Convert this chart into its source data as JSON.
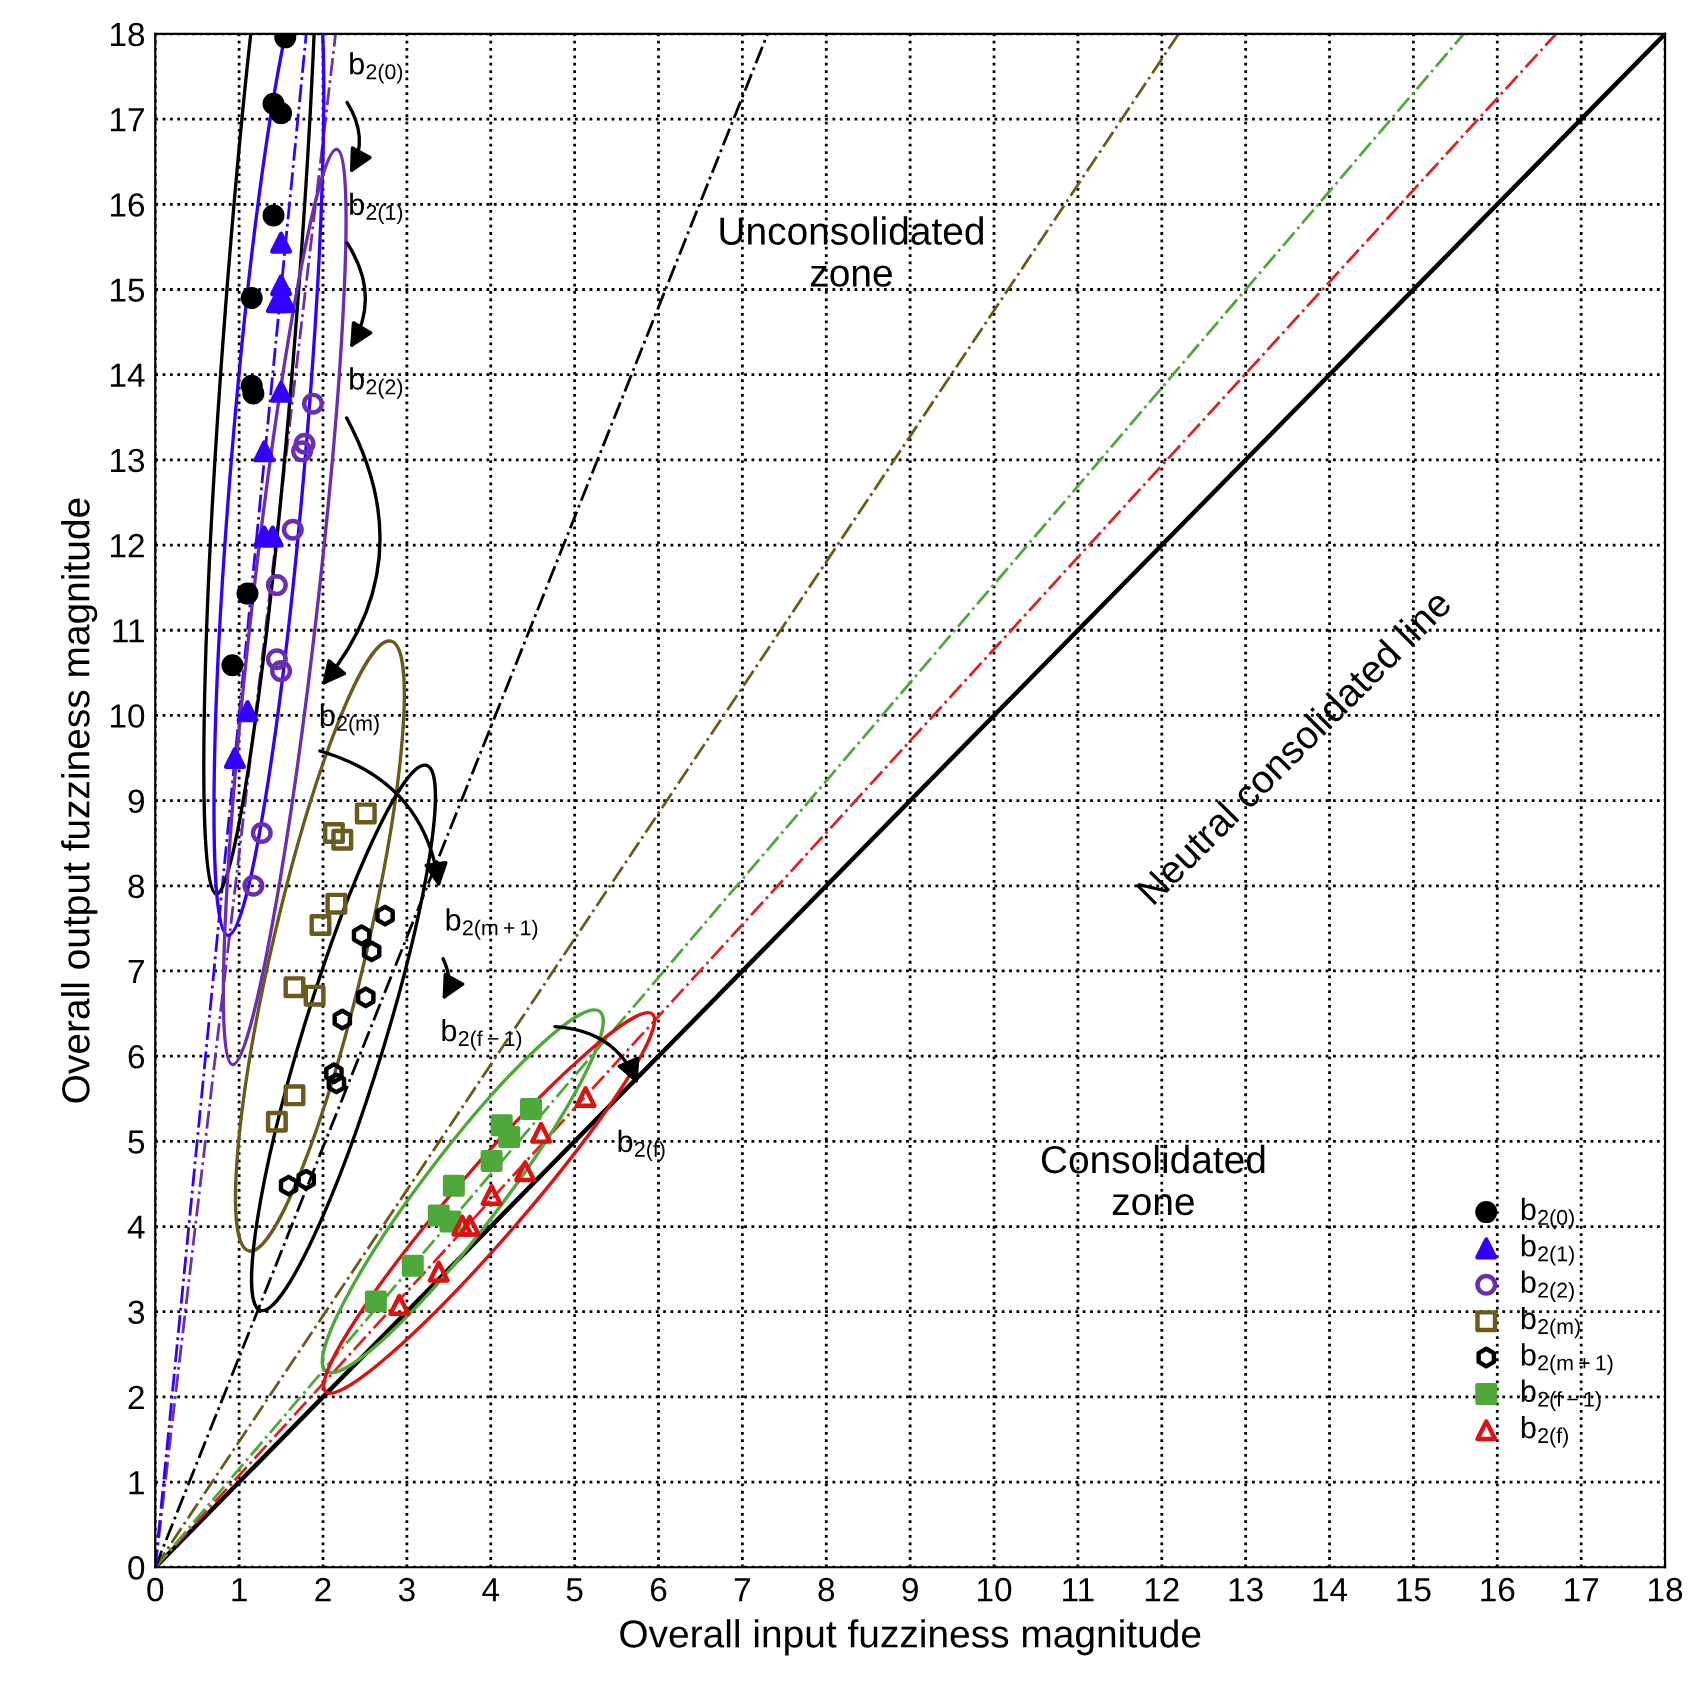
{
  "chart_data": {
    "type": "scatter",
    "xlabel": "Overall input fuzziness magnitude",
    "ylabel": "Overall output fuzziness magnitude",
    "xlim": [
      0,
      18
    ],
    "ylim": [
      0,
      18
    ],
    "xticks": [
      0,
      1,
      2,
      3,
      4,
      5,
      6,
      7,
      8,
      9,
      10,
      11,
      12,
      13,
      14,
      15,
      16,
      17,
      18
    ],
    "yticks": [
      0,
      1,
      2,
      3,
      4,
      5,
      6,
      7,
      8,
      9,
      10,
      11,
      12,
      13,
      14,
      15,
      16,
      17,
      18
    ],
    "grid": true,
    "legend": "bottom right",
    "series": [
      {
        "name": "b$_{2(0)}$",
        "color": "#000000",
        "marker": "circle",
        "x": [
          1.55,
          1.41,
          1.5,
          1.41,
          1.15,
          1.15,
          1.17,
          1.1,
          0.92
        ],
        "values": [
          17.96,
          17.18,
          17.07,
          15.87,
          14.9,
          13.87,
          13.78,
          11.43,
          10.59
        ]
      },
      {
        "name": "b$_{2(1)}$",
        "color": "#3300ff",
        "marker": "triangle",
        "x": [
          1.5,
          1.5,
          1.45,
          1.55,
          1.5,
          1.3,
          1.3,
          1.4,
          1.1,
          0.95
        ],
        "values": [
          15.55,
          15.05,
          14.85,
          14.85,
          13.8,
          13.1,
          12.1,
          12.1,
          10.05,
          9.5
        ]
      },
      {
        "name": "b$_{2(2)}$",
        "color": "#6a2fb0",
        "marker": "circle_open",
        "x": [
          1.88,
          1.78,
          1.75,
          1.64,
          1.45,
          1.45,
          1.5,
          1.27,
          1.17
        ],
        "values": [
          13.66,
          13.19,
          13.1,
          12.18,
          11.53,
          10.66,
          10.52,
          8.62,
          8.0
        ]
      },
      {
        "name": "b$_{2(m)}$",
        "color": "#6b5a1e",
        "marker": "square_open",
        "x": [
          2.51,
          2.13,
          2.23,
          2.16,
          1.97,
          1.66,
          1.9,
          1.66,
          1.45
        ],
        "values": [
          8.85,
          8.62,
          8.54,
          7.79,
          7.54,
          6.81,
          6.71,
          5.54,
          5.23
        ]
      },
      {
        "name": "b$_{2(m+1)}$",
        "color": "#000000",
        "marker": "circle_open",
        "x": [
          2.74,
          2.46,
          2.58,
          2.51,
          2.23,
          2.13,
          2.16,
          1.8,
          1.59
        ],
        "values": [
          7.65,
          7.42,
          7.23,
          6.69,
          6.43,
          5.8,
          5.68,
          4.55,
          4.48
        ]
      },
      {
        "name": "b$_{2(f−1)}$",
        "color": "#4ea83a",
        "marker": "square",
        "x": [
          4.48,
          4.13,
          4.22,
          4.01,
          3.56,
          3.38,
          3.52,
          3.07,
          2.63
        ],
        "values": [
          5.38,
          5.19,
          5.05,
          4.77,
          4.48,
          4.13,
          4.06,
          3.54,
          3.12
        ]
      },
      {
        "name": "b$_{2(f)}$",
        "color": "#dd1111",
        "marker": "triangle_open",
        "x": [
          5.13,
          4.6,
          4.41,
          4.01,
          3.75,
          3.66,
          3.38,
          2.91
        ],
        "values": [
          5.52,
          5.1,
          4.65,
          4.37,
          4.01,
          4.01,
          3.47,
          3.08
        ]
      },
      {
        "type": "line",
        "color": "#000000",
        "line_style": "solid",
        "x": [
          0,
          18
        ],
        "values": [
          0,
          18
        ]
      },
      {
        "type": "line",
        "color": "#dd2222",
        "line_style": "dashdot",
        "x": [
          0,
          16.7
        ],
        "values": [
          0,
          18
        ]
      },
      {
        "type": "line",
        "color": "#4ea83a",
        "line_style": "dashdot",
        "x": [
          0,
          15.6
        ],
        "values": [
          0,
          18
        ]
      },
      {
        "type": "line",
        "color": "#6b5a1e",
        "line_style": "dashdot",
        "x": [
          0,
          12.2
        ],
        "values": [
          0,
          18
        ]
      },
      {
        "type": "line",
        "color": "#000000",
        "line_style": "dashdot",
        "x": [
          0,
          7.3
        ],
        "values": [
          0,
          18
        ]
      },
      {
        "type": "line",
        "color": "#6a2fb0",
        "line_style": "dashdot",
        "x": [
          0,
          2.15
        ],
        "values": [
          0,
          18
        ]
      },
      {
        "type": "line",
        "color": "#3300ff",
        "line_style": "dashdot",
        "x": [
          0,
          1.8
        ],
        "values": [
          0,
          18
        ]
      }
    ],
    "annotations": [
      "b$_{2(0)}$",
      "b$_{2(1)}$",
      "b$_{2(2)}$",
      "b$_{2(m)}$",
      "b$_{2(m+1)}$",
      "b$_{2(f−1)}$",
      "b$_{2(f)}$",
      "Unconsolidated\nzone",
      "Consolidated\nzone",
      "Neutral consolidated line"
    ]
  }
}
